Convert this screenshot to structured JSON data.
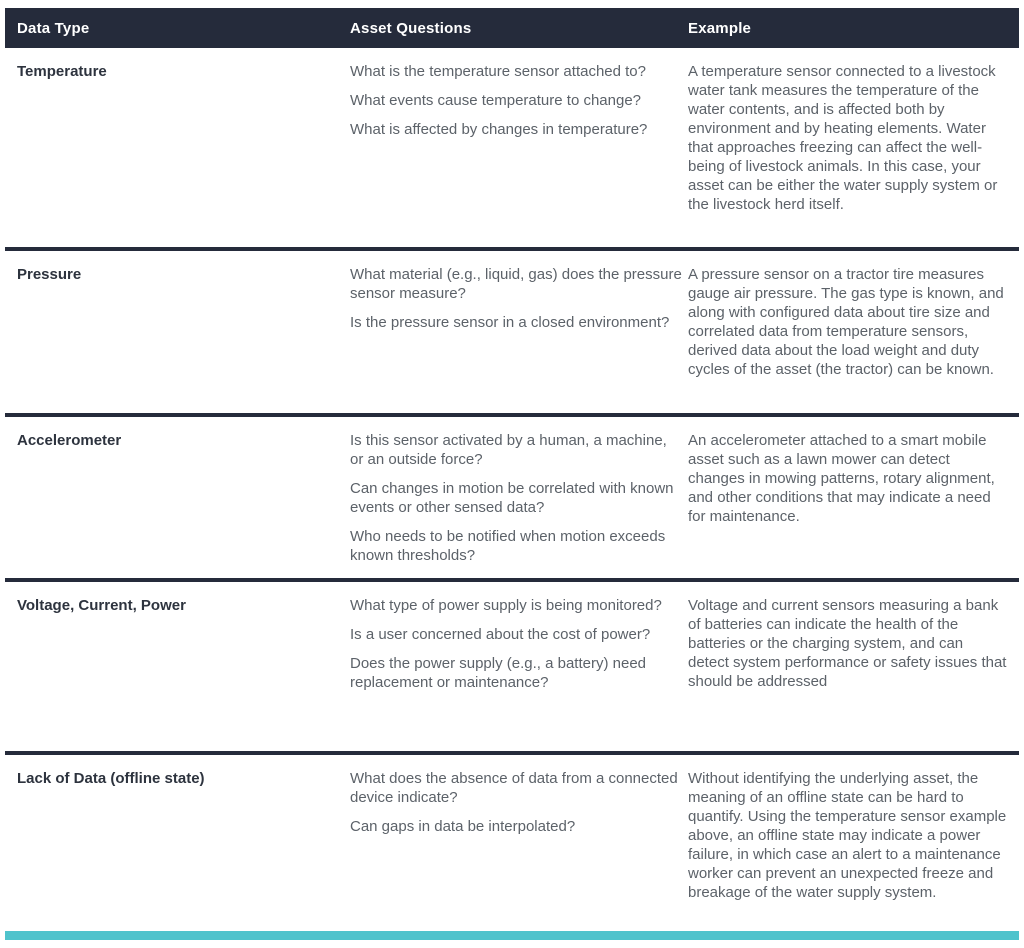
{
  "table": {
    "headers": [
      "Data Type",
      "Asset Questions",
      "Example"
    ],
    "rows": [
      {
        "data_type": "Temperature",
        "questions": [
          "What is the temperature sensor attached to?",
          "What events cause temperature to change?",
          "What is affected by changes in temperature?"
        ],
        "example": "A temperature sensor connected to a livestock water tank measures the temperature of the water contents, and is affected both by environment and by heating elements. Water that approaches freezing can affect the well-being of livestock animals. In this case, your asset can be either the water supply system or the livestock herd itself."
      },
      {
        "data_type": "Pressure",
        "questions": [
          "What material (e.g., liquid, gas) does the pressure sensor measure?",
          "Is the pressure sensor in a closed environment?"
        ],
        "example": "A pressure sensor on a tractor tire measures gauge air pressure. The gas type is known, and along with configured data about tire size and correlated data from temperature sensors, derived data about the load weight and duty cycles of the asset (the tractor) can be known."
      },
      {
        "data_type": "Accelerometer",
        "questions": [
          "Is this sensor activated by a human, a machine, or an outside force?",
          "Can changes in motion be correlated with known events or other sensed data?",
          "Who needs to be notified when motion exceeds known thresholds?"
        ],
        "example": "An accelerometer attached to a smart mobile asset such as a lawn mower can detect changes in mowing patterns, rotary alignment, and other conditions that may indicate a need for maintenance."
      },
      {
        "data_type": "Voltage, Current, Power",
        "questions": [
          "What type of power supply is being monitored?",
          "Is a user concerned about the cost of power?",
          "Does the power supply (e.g., a battery) need replacement or maintenance?"
        ],
        "example": "Voltage and current sensors measuring a bank of batteries can indicate the health of the batteries or the charging system, and can detect system performance or safety issues that should be addressed"
      },
      {
        "data_type": "Lack of Data (offline state)",
        "questions": [
          "What does the absence of data from a connected device indicate?",
          "Can gaps in data be interpolated?"
        ],
        "example": "Without identifying the underlying asset, the meaning of an offline state can be hard to quantify. Using the temperature sensor example above, an offline state may indicate a power failure, in which case an alert to a maintenance worker can prevent an unexpected freeze and breakage of the water supply system."
      }
    ]
  },
  "colors": {
    "header_bg": "#252b3b",
    "header_text": "#ffffff",
    "label_text": "#2d333e",
    "body_text": "#5c6269",
    "divider": "#252b3b",
    "accent_bar": "#4fc3cc"
  }
}
